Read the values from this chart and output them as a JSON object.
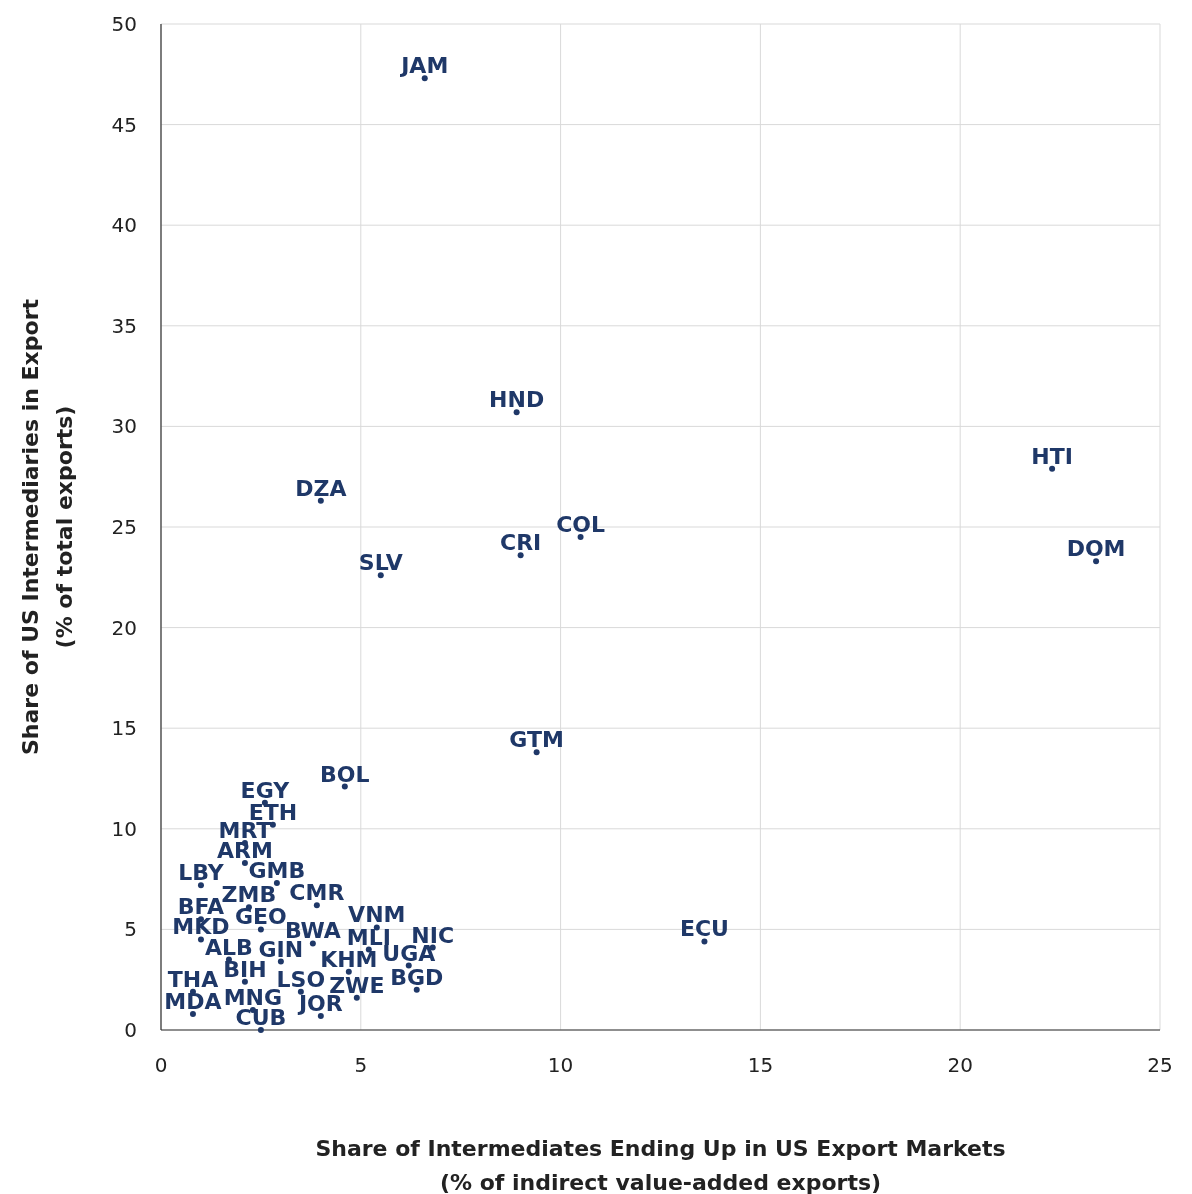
{
  "chart_data": {
    "type": "scatter",
    "xlabel": "Share of Intermediates Ending Up in US Export Markets\n(% of indirect value-added exports)",
    "ylabel": "Share of US Intermediaries in Export\n(% of total exports)",
    "xlim": [
      0,
      25
    ],
    "ylim": [
      0,
      50
    ],
    "xticks": [
      0,
      5,
      10,
      15,
      20,
      25
    ],
    "yticks": [
      0,
      5,
      10,
      15,
      20,
      25,
      30,
      35,
      40,
      45,
      50
    ],
    "grid": true,
    "marker": "circle",
    "series": [
      {
        "name": "JAM",
        "color": "#1f3868",
        "x": [
          6.6
        ],
        "values": [
          47.3
        ]
      },
      {
        "name": "HND",
        "color": "#1f3868",
        "x": [
          8.9
        ],
        "values": [
          30.7
        ]
      },
      {
        "name": "HTI",
        "color": "#1f3868",
        "x": [
          22.3
        ],
        "values": [
          27.9
        ]
      },
      {
        "name": "DZA",
        "color": "#1f3868",
        "x": [
          4.0
        ],
        "values": [
          26.3
        ]
      },
      {
        "name": "COL",
        "color": "#1f3868",
        "x": [
          10.5
        ],
        "values": [
          24.5
        ]
      },
      {
        "name": "CRI",
        "color": "#1f3868",
        "x": [
          9.0
        ],
        "values": [
          23.6
        ]
      },
      {
        "name": "DOM",
        "color": "#1f3868",
        "x": [
          23.4
        ],
        "values": [
          23.3
        ]
      },
      {
        "name": "SLV",
        "color": "#1f3868",
        "x": [
          5.5
        ],
        "values": [
          22.6
        ]
      },
      {
        "name": "GTM",
        "color": "#1f3868",
        "x": [
          9.4
        ],
        "values": [
          13.8
        ]
      },
      {
        "name": "BOL",
        "color": "#1f3868",
        "x": [
          4.6
        ],
        "values": [
          12.1
        ]
      },
      {
        "name": "EGY",
        "color": "#1f3868",
        "x": [
          2.6
        ],
        "values": [
          11.3
        ]
      },
      {
        "name": "ETH",
        "color": "#1f3868",
        "x": [
          2.8
        ],
        "values": [
          10.2
        ]
      },
      {
        "name": "MRT",
        "color": "#1f3868",
        "x": [
          2.1
        ],
        "values": [
          9.3
        ]
      },
      {
        "name": "ARM",
        "color": "#1f3868",
        "x": [
          2.1
        ],
        "values": [
          8.3
        ]
      },
      {
        "name": "LBY",
        "color": "#1f3868",
        "x": [
          1.0
        ],
        "values": [
          7.2
        ]
      },
      {
        "name": "GMB",
        "color": "#1f3868",
        "x": [
          2.9
        ],
        "values": [
          7.3
        ]
      },
      {
        "name": "ZMB",
        "color": "#1f3868",
        "x": [
          2.2
        ],
        "values": [
          6.1
        ]
      },
      {
        "name": "CMR",
        "color": "#1f3868",
        "x": [
          3.9
        ],
        "values": [
          6.2
        ]
      },
      {
        "name": "BFA",
        "color": "#1f3868",
        "x": [
          1.0
        ],
        "values": [
          5.5
        ]
      },
      {
        "name": "VNM",
        "color": "#1f3868",
        "x": [
          5.4
        ],
        "values": [
          5.1
        ]
      },
      {
        "name": "GEO",
        "color": "#1f3868",
        "x": [
          2.5
        ],
        "values": [
          5.0
        ]
      },
      {
        "name": "MKD",
        "color": "#1f3868",
        "x": [
          1.0
        ],
        "values": [
          4.5
        ]
      },
      {
        "name": "BWA",
        "color": "#1f3868",
        "x": [
          3.8
        ],
        "values": [
          4.3
        ]
      },
      {
        "name": "ECU",
        "color": "#1f3868",
        "x": [
          13.6
        ],
        "values": [
          4.4
        ]
      },
      {
        "name": "MLI",
        "color": "#1f3868",
        "x": [
          5.2
        ],
        "values": [
          4.0
        ]
      },
      {
        "name": "NIC",
        "color": "#1f3868",
        "x": [
          6.8
        ],
        "values": [
          4.1
        ]
      },
      {
        "name": "ALB",
        "color": "#1f3868",
        "x": [
          1.7
        ],
        "values": [
          3.5
        ]
      },
      {
        "name": "GIN",
        "color": "#1f3868",
        "x": [
          3.0
        ],
        "values": [
          3.4
        ]
      },
      {
        "name": "KHM",
        "color": "#1f3868",
        "x": [
          4.7
        ],
        "values": [
          2.9
        ]
      },
      {
        "name": "UGA",
        "color": "#1f3868",
        "x": [
          6.2
        ],
        "values": [
          3.2
        ]
      },
      {
        "name": "BIH",
        "color": "#1f3868",
        "x": [
          2.1
        ],
        "values": [
          2.4
        ]
      },
      {
        "name": "THA",
        "color": "#1f3868",
        "x": [
          0.8
        ],
        "values": [
          1.9
        ]
      },
      {
        "name": "LSO",
        "color": "#1f3868",
        "x": [
          3.5
        ],
        "values": [
          1.9
        ]
      },
      {
        "name": "ZWE",
        "color": "#1f3868",
        "x": [
          4.9
        ],
        "values": [
          1.6
        ]
      },
      {
        "name": "BGD",
        "color": "#1f3868",
        "x": [
          6.4
        ],
        "values": [
          2.0
        ]
      },
      {
        "name": "MDA",
        "color": "#1f3868",
        "x": [
          0.8
        ],
        "values": [
          0.8
        ]
      },
      {
        "name": "MNG",
        "color": "#1f3868",
        "x": [
          2.3
        ],
        "values": [
          1.0
        ]
      },
      {
        "name": "JOR",
        "color": "#1f3868",
        "x": [
          4.0
        ],
        "values": [
          0.7
        ]
      },
      {
        "name": "CUB",
        "color": "#1f3868",
        "x": [
          2.5
        ],
        "values": [
          0.0
        ]
      }
    ]
  }
}
